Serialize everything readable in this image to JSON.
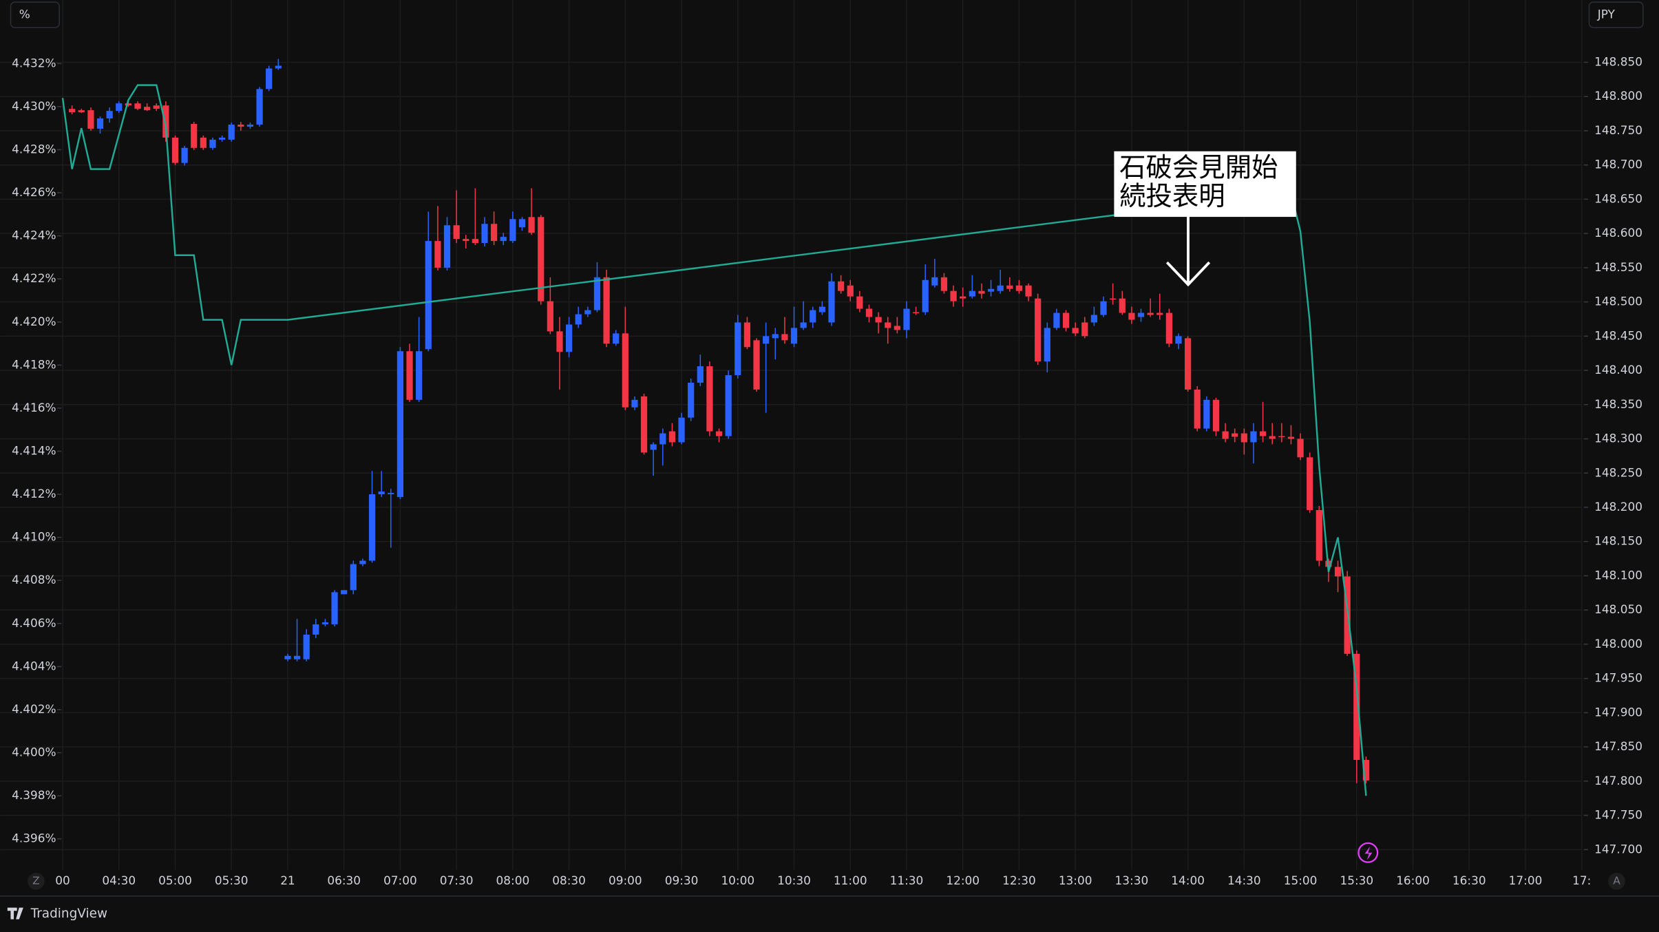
{
  "chart_data": {
    "type": "candlestick",
    "ui": {
      "left_unit": "%",
      "right_unit": "JPY",
      "bottom_left": "Z",
      "bottom_right": "A",
      "brand": "TradingView"
    },
    "annotation": [
      "石破会見開始",
      "続投表明"
    ],
    "grid": true,
    "x": [
      "04:05",
      "04:10",
      "04:15",
      "04:20",
      "04:25",
      "04:30",
      "04:35",
      "04:40",
      "04:45",
      "04:50",
      "04:55",
      "05:00",
      "05:05",
      "05:10",
      "05:15",
      "05:20",
      "05:25",
      "05:30",
      "05:35",
      "05:40",
      "05:45",
      "05:50",
      "05:55",
      "06:00",
      "06:05",
      "06:10",
      "06:15",
      "06:20",
      "06:25",
      "06:30",
      "06:35",
      "06:40",
      "06:45",
      "06:50",
      "06:55",
      "07:00",
      "07:05",
      "07:10",
      "07:15",
      "07:20",
      "07:25",
      "07:30",
      "07:35",
      "07:40",
      "07:45",
      "07:50",
      "07:55",
      "08:00",
      "08:05",
      "08:10",
      "08:15",
      "08:20",
      "08:25",
      "08:30",
      "08:35",
      "08:40",
      "08:45",
      "08:50",
      "08:55",
      "09:00",
      "09:05",
      "09:10",
      "09:15",
      "09:20",
      "09:25",
      "09:30",
      "09:35",
      "09:40",
      "09:45",
      "09:50",
      "09:55",
      "10:00",
      "10:05",
      "10:10",
      "10:15",
      "10:20",
      "10:25",
      "10:30",
      "10:35",
      "10:40",
      "10:45",
      "10:50",
      "10:55",
      "11:00",
      "11:05",
      "11:10",
      "11:15",
      "11:20",
      "11:25",
      "11:30",
      "11:35",
      "11:40",
      "11:45",
      "11:50",
      "11:55",
      "12:00",
      "12:05",
      "12:10",
      "12:15",
      "12:20",
      "12:25",
      "12:30",
      "12:35",
      "12:40",
      "12:45",
      "12:50",
      "12:55",
      "13:00",
      "13:05",
      "13:10",
      "13:15",
      "13:20",
      "13:25",
      "13:30",
      "13:35",
      "13:40",
      "13:45",
      "13:50",
      "13:55",
      "14:00",
      "14:05",
      "14:10",
      "14:15",
      "14:20",
      "14:25",
      "14:30",
      "14:35",
      "14:40",
      "14:45",
      "14:50",
      "14:55",
      "15:00",
      "15:05",
      "15:10",
      "15:15",
      "15:20",
      "15:25",
      "15:30",
      "15:35"
    ],
    "xlim": [
      "03:30",
      "17:30"
    ],
    "xticks": [
      {
        "value": "04:00",
        "label": "00"
      },
      "04:30",
      "05:00",
      "05:30",
      {
        "value": "06:00",
        "label": "21"
      },
      "06:30",
      "07:00",
      "07:30",
      "08:00",
      "08:30",
      "09:00",
      "09:30",
      "10:00",
      "10:30",
      "11:00",
      "11:30",
      "12:00",
      "12:30",
      "13:00",
      "13:30",
      "14:00",
      "14:30",
      "15:00",
      "15:30",
      "16:00",
      "16:30",
      "17:00",
      {
        "value": "17:30",
        "label": "17:"
      }
    ],
    "ylim": [
      4.39477,
      4.43387
    ],
    "yticks": [
      {
        "value": 4.396,
        "label": "4.396%"
      },
      {
        "value": 4.398,
        "label": "4.398%"
      },
      {
        "value": 4.4,
        "label": "4.400%"
      },
      {
        "value": 4.402,
        "label": "4.402%"
      },
      {
        "value": 4.404,
        "label": "4.404%"
      },
      {
        "value": 4.406,
        "label": "4.406%"
      },
      {
        "value": 4.408,
        "label": "4.408%"
      },
      {
        "value": 4.41,
        "label": "4.410%"
      },
      {
        "value": 4.412,
        "label": "4.412%"
      },
      {
        "value": 4.414,
        "label": "4.414%"
      },
      {
        "value": 4.416,
        "label": "4.416%"
      },
      {
        "value": 4.418,
        "label": "4.418%"
      },
      {
        "value": 4.42,
        "label": "4.420%"
      },
      {
        "value": 4.422,
        "label": "4.422%"
      },
      {
        "value": 4.424,
        "label": "4.424%"
      },
      {
        "value": 4.426,
        "label": "4.426%"
      },
      {
        "value": 4.428,
        "label": "4.428%"
      },
      {
        "value": 4.43,
        "label": "4.430%"
      },
      {
        "value": 4.432,
        "label": "4.432%"
      }
    ],
    "y2lim": [
      147.677,
      148.907
    ],
    "y2ticks": [
      {
        "value": 147.7,
        "label": "147.700"
      },
      {
        "value": 147.75,
        "label": "147.750"
      },
      {
        "value": 147.8,
        "label": "147.800"
      },
      {
        "value": 147.85,
        "label": "147.850"
      },
      {
        "value": 147.9,
        "label": "147.900"
      },
      {
        "value": 147.95,
        "label": "147.950"
      },
      {
        "value": 148.0,
        "label": "148.000"
      },
      {
        "value": 148.05,
        "label": "148.050"
      },
      {
        "value": 148.1,
        "label": "148.100"
      },
      {
        "value": 148.15,
        "label": "148.150"
      },
      {
        "value": 148.2,
        "label": "148.200"
      },
      {
        "value": 148.25,
        "label": "148.250"
      },
      {
        "value": 148.3,
        "label": "148.300"
      },
      {
        "value": 148.35,
        "label": "148.350"
      },
      {
        "value": 148.4,
        "label": "148.400"
      },
      {
        "value": 148.45,
        "label": "148.450"
      },
      {
        "value": 148.5,
        "label": "148.500"
      },
      {
        "value": 148.55,
        "label": "148.550"
      },
      {
        "value": 148.6,
        "label": "148.600"
      },
      {
        "value": 148.65,
        "label": "148.650"
      },
      {
        "value": 148.7,
        "label": "148.700"
      },
      {
        "value": 148.75,
        "label": "148.750"
      },
      {
        "value": 148.8,
        "label": "148.800"
      },
      {
        "value": 148.85,
        "label": "148.850"
      }
    ],
    "series": [
      {
        "type": "candlestick",
        "axis": "y2",
        "up_color": "#2962ff",
        "down_color": "#f23645",
        "open": [
          148.782,
          148.78,
          148.78,
          148.753,
          148.768,
          148.779,
          148.79,
          148.79,
          148.785,
          148.787,
          148.787,
          148.74,
          148.703,
          148.76,
          148.74,
          148.725,
          148.737,
          148.737,
          148.759,
          148.756,
          148.759,
          148.811,
          148.841,
          147.978,
          147.978,
          147.978,
          148.014,
          148.029,
          148.029,
          148.073,
          148.079,
          148.117,
          148.122,
          148.219,
          148.219,
          148.215,
          148.428,
          148.357,
          148.431,
          148.589,
          148.55,
          148.612,
          148.592,
          148.592,
          148.586,
          148.614,
          148.589,
          148.589,
          148.609,
          148.624,
          148.624,
          148.501,
          148.457,
          148.427,
          148.467,
          148.482,
          148.488,
          148.536,
          148.439,
          148.454,
          148.346,
          148.362,
          148.284,
          148.292,
          148.311,
          148.295,
          148.331,
          148.382,
          148.406,
          148.311,
          148.304,
          148.393,
          148.47,
          148.444,
          148.439,
          148.447,
          148.453,
          148.439,
          148.462,
          148.47,
          148.485,
          148.47,
          148.53,
          148.524,
          148.508,
          148.49,
          148.478,
          148.47,
          148.465,
          148.459,
          148.485,
          148.485,
          148.524,
          148.536,
          148.516,
          148.508,
          148.508,
          148.516,
          148.515,
          148.516,
          148.524,
          148.524,
          148.524,
          148.505,
          148.413,
          148.462,
          148.484,
          148.462,
          148.47,
          148.47,
          148.481,
          148.505,
          148.505,
          148.484,
          148.478,
          148.484,
          148.484,
          148.484,
          148.439,
          148.447,
          148.372,
          148.315,
          148.357,
          148.311,
          148.308,
          148.308,
          148.295,
          148.311,
          148.304,
          148.304,
          148.303,
          148.3,
          148.273,
          148.196,
          148.122,
          148.113,
          148.099,
          147.986,
          147.831
        ],
        "high": [
          148.787,
          148.782,
          148.784,
          148.771,
          148.784,
          148.793,
          148.793,
          148.793,
          148.79,
          148.79,
          148.793,
          148.743,
          148.728,
          148.763,
          148.743,
          148.74,
          148.743,
          148.762,
          148.763,
          148.762,
          148.814,
          148.845,
          148.855,
          147.986,
          148.037,
          148.022,
          148.037,
          148.037,
          148.079,
          148.079,
          148.122,
          148.125,
          148.253,
          148.253,
          148.227,
          148.434,
          148.439,
          148.478,
          148.632,
          148.64,
          148.624,
          148.663,
          148.598,
          148.666,
          148.624,
          148.632,
          148.601,
          148.632,
          148.624,
          148.666,
          148.627,
          148.536,
          148.478,
          148.478,
          148.493,
          148.493,
          148.558,
          148.547,
          148.459,
          148.493,
          148.362,
          148.366,
          148.295,
          148.315,
          148.323,
          148.338,
          148.388,
          148.423,
          148.413,
          148.315,
          148.4,
          148.481,
          148.478,
          148.447,
          148.47,
          148.462,
          148.478,
          148.493,
          148.501,
          148.493,
          148.501,
          148.542,
          148.539,
          148.532,
          148.516,
          148.496,
          148.485,
          148.478,
          148.478,
          148.501,
          148.493,
          148.555,
          148.563,
          148.542,
          148.524,
          148.521,
          148.539,
          148.527,
          148.532,
          148.547,
          148.536,
          148.532,
          148.527,
          148.512,
          148.47,
          148.49,
          148.488,
          148.47,
          148.478,
          148.493,
          148.508,
          148.527,
          148.516,
          148.493,
          148.49,
          148.505,
          148.512,
          148.49,
          148.454,
          148.45,
          148.377,
          148.362,
          148.36,
          148.323,
          148.315,
          148.315,
          148.323,
          148.354,
          148.323,
          148.323,
          148.32,
          148.308,
          148.28,
          148.202,
          148.125,
          148.122,
          148.107,
          147.991,
          147.836
        ],
        "low": [
          148.774,
          148.776,
          148.75,
          148.746,
          148.762,
          148.776,
          148.785,
          148.78,
          148.779,
          148.779,
          148.734,
          148.7,
          148.699,
          148.722,
          148.722,
          148.722,
          148.734,
          148.734,
          148.75,
          148.753,
          148.756,
          148.808,
          148.839,
          147.975,
          147.975,
          147.975,
          148.009,
          148.026,
          148.026,
          148.073,
          148.073,
          148.114,
          148.119,
          148.215,
          148.141,
          148.212,
          148.354,
          148.354,
          148.428,
          148.546,
          148.546,
          148.586,
          148.578,
          148.583,
          148.581,
          148.583,
          148.583,
          148.586,
          148.604,
          148.598,
          148.496,
          148.453,
          148.372,
          148.419,
          148.462,
          148.478,
          148.485,
          148.434,
          148.436,
          148.342,
          148.342,
          148.277,
          148.246,
          148.261,
          148.289,
          148.292,
          148.326,
          148.377,
          148.304,
          148.295,
          148.3,
          148.388,
          148.431,
          148.369,
          148.338,
          148.416,
          148.439,
          148.434,
          148.459,
          148.462,
          148.481,
          148.465,
          148.512,
          148.501,
          148.485,
          148.47,
          148.454,
          148.439,
          148.454,
          148.447,
          148.481,
          148.481,
          148.521,
          148.512,
          148.493,
          148.493,
          148.505,
          148.505,
          148.508,
          148.512,
          148.515,
          148.512,
          148.501,
          148.408,
          148.397,
          148.459,
          148.457,
          148.45,
          148.447,
          148.465,
          148.478,
          148.496,
          148.481,
          148.468,
          148.471,
          148.478,
          148.474,
          148.434,
          148.431,
          148.369,
          148.311,
          148.311,
          148.304,
          148.295,
          148.295,
          148.277,
          148.264,
          148.295,
          148.292,
          148.295,
          148.292,
          148.269,
          148.192,
          148.114,
          148.091,
          148.076,
          147.983,
          147.797,
          147.797
        ],
        "close": [
          148.777,
          148.777,
          148.753,
          148.768,
          148.779,
          148.79,
          148.787,
          148.782,
          148.78,
          148.782,
          148.74,
          148.703,
          148.725,
          148.725,
          148.725,
          148.737,
          148.74,
          148.759,
          148.756,
          148.759,
          148.811,
          148.841,
          148.845,
          147.983,
          147.983,
          148.014,
          148.029,
          148.032,
          148.076,
          148.079,
          148.117,
          148.122,
          148.219,
          148.223,
          148.221,
          148.428,
          148.357,
          148.428,
          148.589,
          148.55,
          148.612,
          148.592,
          148.589,
          148.586,
          148.614,
          148.589,
          148.595,
          148.621,
          148.621,
          148.601,
          148.501,
          148.457,
          148.427,
          148.467,
          148.482,
          148.488,
          148.536,
          148.439,
          148.454,
          148.346,
          148.357,
          148.28,
          148.292,
          148.308,
          148.295,
          148.331,
          148.382,
          148.406,
          148.311,
          148.304,
          148.393,
          148.47,
          148.434,
          148.372,
          148.45,
          148.453,
          148.444,
          148.462,
          148.47,
          148.488,
          148.493,
          148.53,
          148.516,
          148.508,
          148.49,
          148.478,
          148.47,
          148.462,
          148.459,
          148.49,
          148.484,
          148.532,
          148.536,
          148.516,
          148.501,
          148.505,
          148.516,
          148.512,
          148.519,
          148.524,
          148.519,
          148.516,
          148.508,
          148.413,
          148.462,
          148.484,
          148.462,
          148.454,
          148.45,
          148.481,
          148.501,
          148.504,
          148.484,
          148.474,
          148.484,
          148.481,
          148.481,
          148.439,
          148.45,
          148.372,
          148.315,
          148.357,
          148.311,
          148.3,
          148.303,
          148.295,
          148.311,
          148.304,
          148.3,
          148.303,
          148.3,
          148.273,
          148.196,
          148.122,
          148.113,
          148.099,
          147.986,
          147.831,
          147.801
        ]
      },
      {
        "type": "line",
        "axis": "y",
        "color": "#22ab94",
        "x": [
          "04:00",
          "04:05",
          "04:10",
          "04:15",
          "04:20",
          "04:25",
          "04:30",
          "04:35",
          "04:40",
          "04:45",
          "04:50",
          "04:55",
          "05:00",
          "05:05",
          "05:10",
          "05:15",
          "05:20",
          "05:25",
          "05:30",
          "05:35",
          "05:40",
          "05:45",
          "05:50",
          "05:55",
          "06:00",
          "14:55",
          "15:00",
          "15:05",
          "15:10",
          "15:15",
          "15:20",
          "15:25",
          "15:30",
          "15:35"
        ],
        "values": [
          4.4304,
          4.4271,
          4.429,
          4.4271,
          4.4271,
          4.4271,
          4.4287,
          4.4303,
          4.431,
          4.431,
          4.431,
          4.4291,
          4.4231,
          4.4231,
          4.4231,
          4.4201,
          4.4201,
          4.4201,
          4.418,
          4.4201,
          4.4201,
          4.4201,
          4.4201,
          4.4201,
          4.4201,
          4.426,
          4.4242,
          4.42,
          4.4133,
          4.4084,
          4.41,
          4.4067,
          4.403,
          4.398
        ]
      }
    ]
  }
}
